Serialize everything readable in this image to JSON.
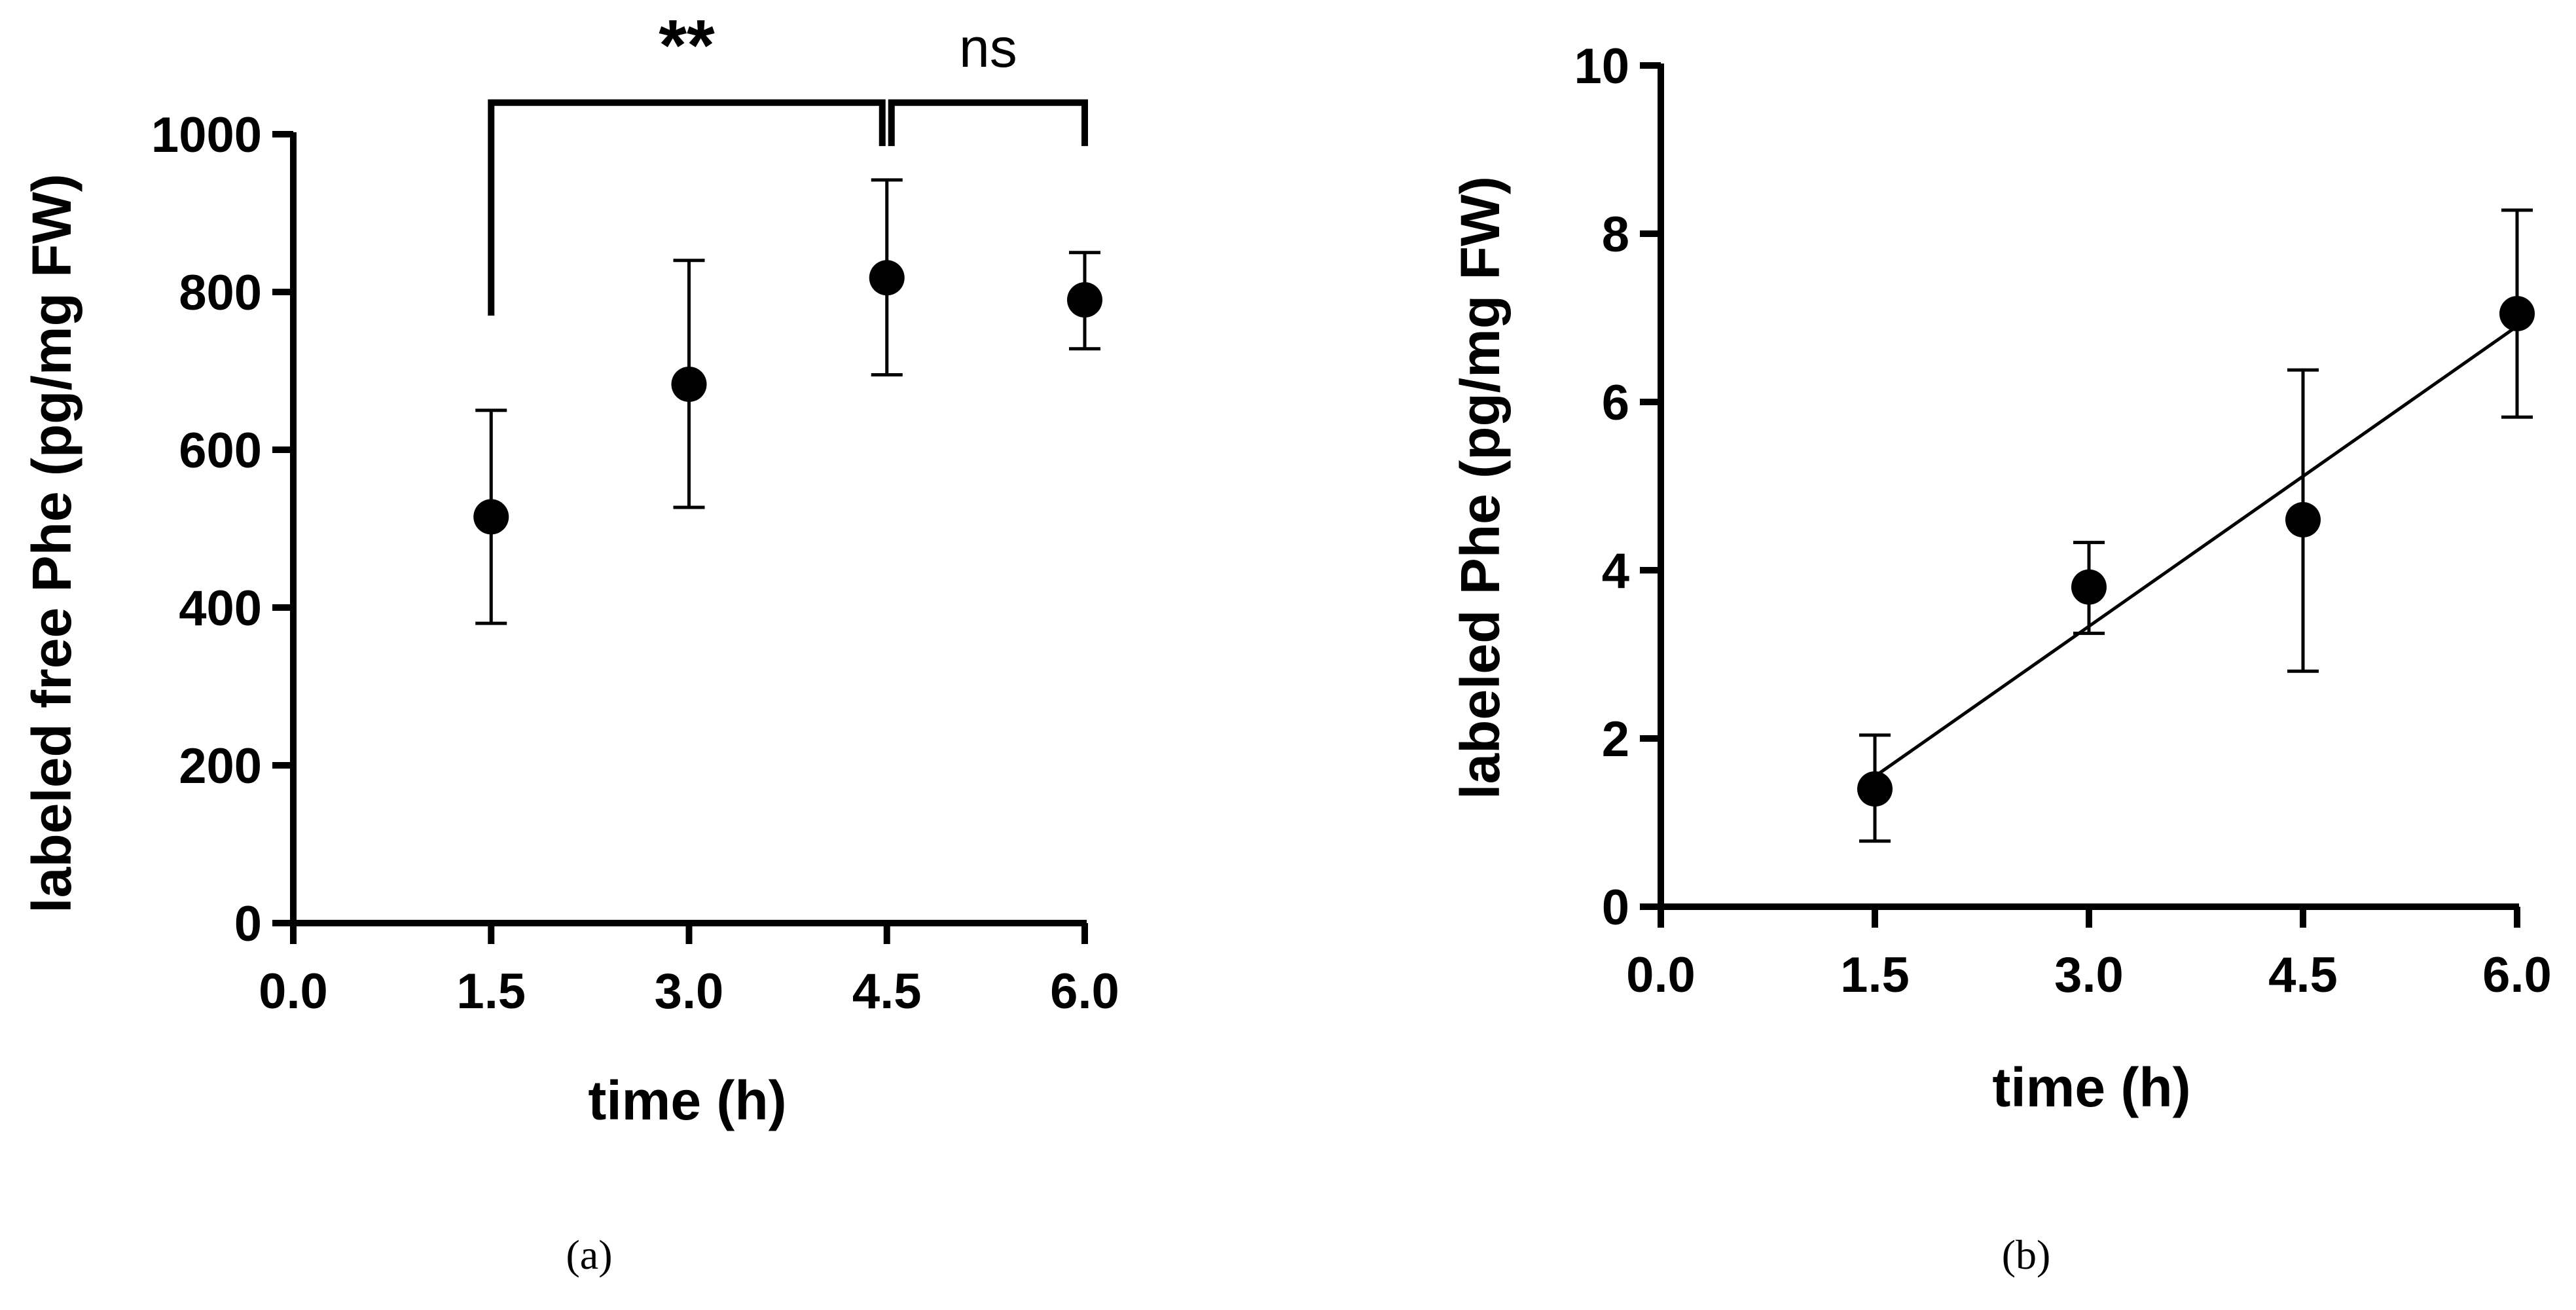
{
  "chart_data": [
    {
      "id": "a",
      "type": "scatter",
      "panel_label": "(a)",
      "xlabel": "time (h)",
      "ylabel": "labeled free Phe (pg/mg FW)",
      "xlim": [
        0,
        6
      ],
      "ylim": [
        0,
        1000
      ],
      "x_ticks": [
        0,
        1.5,
        3,
        4.5,
        6
      ],
      "x_tick_labels": [
        "0.0",
        "1.5",
        "3.0",
        "4.5",
        "6.0"
      ],
      "y_ticks": [
        0,
        200,
        400,
        600,
        800,
        1000
      ],
      "y_tick_labels": [
        "0",
        "200",
        "400",
        "600",
        "800",
        "1000"
      ],
      "series": [
        {
          "name": "labeled free Phe",
          "x": [
            1.5,
            3.0,
            4.5,
            6.0
          ],
          "y": [
            515,
            683,
            818,
            790
          ],
          "err_low": [
            380,
            527,
            695,
            728
          ],
          "err_high": [
            650,
            840,
            942,
            850
          ]
        }
      ],
      "annotations": [
        {
          "type": "significance",
          "from": 1.5,
          "to": 4.5,
          "label": "**",
          "bold": true,
          "bracket_y": 1040,
          "bracket_low": 770
        },
        {
          "type": "significance",
          "from": 4.5,
          "to": 6.0,
          "label": "ns",
          "bold": false,
          "bracket_y": 1040,
          "bracket_low": 985
        }
      ]
    },
    {
      "id": "b",
      "type": "scatter",
      "panel_label": "(b)",
      "xlabel": "time (h)",
      "ylabel": "labeled Phe (pg/mg FW)",
      "xlim": [
        0,
        6
      ],
      "ylim": [
        0,
        10
      ],
      "x_ticks": [
        0,
        1.5,
        3,
        4.5,
        6
      ],
      "x_tick_labels": [
        "0.0",
        "1.5",
        "3.0",
        "4.5",
        "6.0"
      ],
      "y_ticks": [
        0,
        2,
        4,
        6,
        8,
        10
      ],
      "y_tick_labels": [
        "0",
        "2",
        "4",
        "6",
        "8",
        "10"
      ],
      "series": [
        {
          "name": "labeled Phe",
          "x": [
            1.5,
            3.0,
            4.5,
            6.0
          ],
          "y": [
            1.4,
            3.8,
            4.6,
            7.05
          ],
          "err_low": [
            0.78,
            3.25,
            2.8,
            5.82
          ],
          "err_high": [
            2.04,
            4.33,
            6.38,
            8.28
          ]
        }
      ],
      "fit_line": {
        "x": [
          1.5,
          6.0
        ],
        "y": [
          1.55,
          6.9
        ]
      }
    }
  ]
}
